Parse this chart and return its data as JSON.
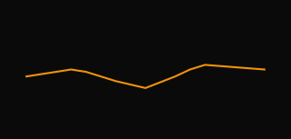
{
  "x": [
    2020,
    2020.25,
    2020.75,
    2021,
    2021.5,
    2022,
    2022.5,
    2022.75,
    2023,
    2023.5,
    2024
  ],
  "y": [
    100,
    100.5,
    101.5,
    101,
    99,
    97.5,
    100,
    101.5,
    102.5,
    102,
    101.5
  ],
  "line_color": "#f0930a",
  "line_width": 1.5,
  "background_color": "#0a0a0a",
  "xlim": [
    2019.8,
    2024.3
  ],
  "ylim": [
    88,
    115
  ]
}
